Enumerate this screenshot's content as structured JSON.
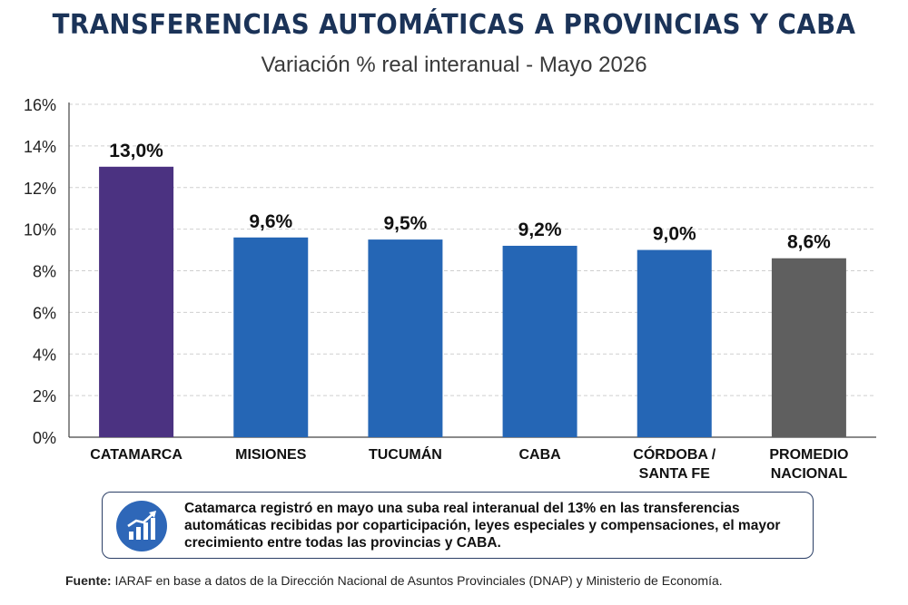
{
  "header": {
    "title": "TRANSFERENCIAS AUTOMÁTICAS A PROVINCIAS Y CABA",
    "subtitle": "Variación % real interanual - Mayo 2026"
  },
  "chart_data": {
    "type": "bar",
    "title": "TRANSFERENCIAS AUTOMÁTICAS A PROVINCIAS Y CABA",
    "subtitle": "Variación % real interanual - Mayo 2026",
    "categories": [
      [
        "CATAMARCA"
      ],
      [
        "MISIONES"
      ],
      [
        "TUCUMÁN"
      ],
      [
        "CABA"
      ],
      [
        "CÓRDOBA /",
        "SANTA FE"
      ],
      [
        "PROMEDIO",
        "NACIONAL"
      ]
    ],
    "values": [
      13.0,
      9.6,
      9.5,
      9.2,
      9.0,
      8.6
    ],
    "value_labels": [
      "13,0%",
      "9,6%",
      "9,5%",
      "9,2%",
      "9,0%",
      "8,6%"
    ],
    "colors": [
      "#4b3281",
      "#2566b5",
      "#2566b5",
      "#2566b5",
      "#2566b5",
      "#5f5f5f"
    ],
    "yticks": [
      "0%",
      "2%",
      "4%",
      "6%",
      "8%",
      "10%",
      "12%",
      "14%",
      "16%"
    ],
    "ylim": [
      0,
      16
    ],
    "grid": true,
    "legend": "none"
  },
  "note": {
    "icon": "chart-growth-icon",
    "text": "Catamarca registró en mayo una suba real interanual del 13% en las transferencias automáticas recibidas por coparticipación, leyes especiales y compensaciones, el mayor crecimiento entre todas las provincias y CABA."
  },
  "source": {
    "label": "Fuente:",
    "text": "IARAF en base a datos de la Dirección Nacional de Asuntos Provinciales (DNAP) y Ministerio de Economía."
  }
}
